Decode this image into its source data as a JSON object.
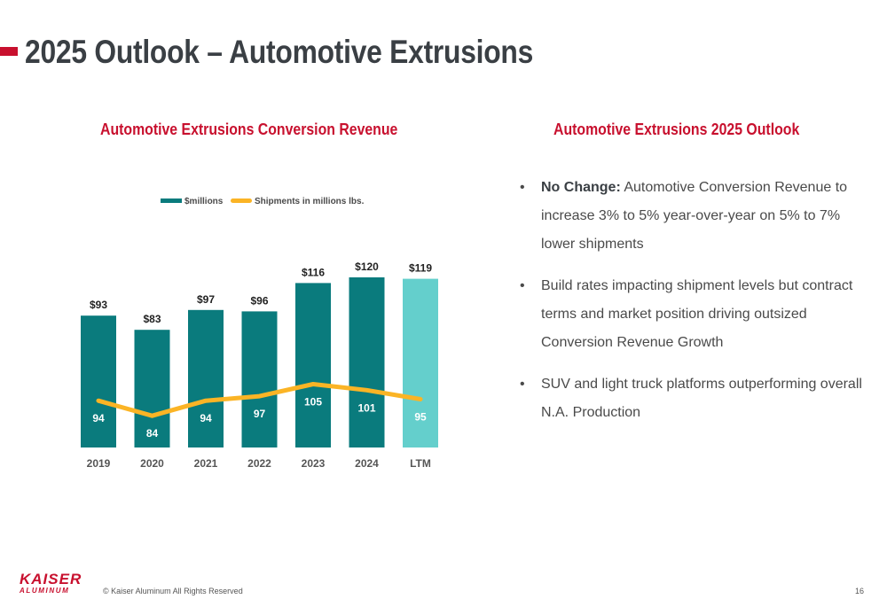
{
  "page": {
    "title": "2025 Outlook – Automotive Extrusions",
    "footer": {
      "copyright": "© Kaiser Aluminum All Rights Reserved",
      "page_number": "16"
    },
    "logo": {
      "top": "KAISER",
      "bottom": "ALUMINUM"
    }
  },
  "chart_section": {
    "heading": "Automotive Extrusions Conversion Revenue"
  },
  "outlook": {
    "heading": "Automotive Extrusions 2025 Outlook",
    "bullet_marker": "•",
    "bullets": [
      {
        "lead": "No Change:",
        "text": " Automotive Conversion Revenue to increase 3% to 5% year-over-year on 5% to 7% lower shipments"
      },
      {
        "lead": "",
        "text": "Build rates impacting shipment levels but contract terms and market position driving outsized Conversion Revenue Growth"
      },
      {
        "lead": "",
        "text": "SUV and light truck platforms outperforming overall N.A. Production"
      }
    ]
  },
  "colors": {
    "accent_red": "#c8102e",
    "bar_teal": "#0a7b7d",
    "bar_ltm": "#64cfcc",
    "line_gold": "#fbb425",
    "title_dark": "#3a3f44"
  },
  "chart_data": {
    "type": "bar",
    "categories": [
      "2019",
      "2020",
      "2021",
      "2022",
      "2023",
      "2024",
      "LTM"
    ],
    "series": [
      {
        "name": "$millions",
        "kind": "bar",
        "values": [
          93,
          83,
          97,
          96,
          116,
          120,
          119
        ],
        "labels": [
          "$93",
          "$83",
          "$97",
          "$96",
          "$116",
          "$120",
          "$119"
        ]
      },
      {
        "name": "Shipments in millions lbs.",
        "kind": "line",
        "values": [
          94,
          84,
          94,
          97,
          105,
          101,
          95
        ],
        "labels": [
          "94",
          "84",
          "94",
          "97",
          "105",
          "101",
          "95"
        ]
      }
    ],
    "highlight_category": "LTM",
    "legend_position": "top",
    "grid": false,
    "ylim": [
      0,
      125
    ]
  }
}
